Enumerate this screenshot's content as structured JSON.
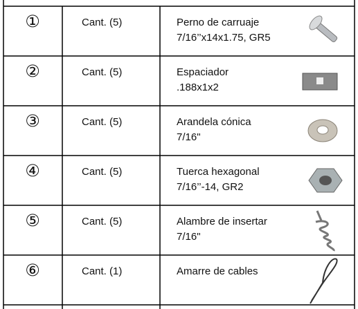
{
  "table": {
    "rows": [
      {
        "number": "①",
        "quantity": "Cant. (5)",
        "description": [
          "Perno de carruaje",
          "7/16’’x14x1.75, GR5"
        ]
      },
      {
        "number": "②",
        "quantity": "Cant. (5)",
        "description": [
          "Espaciador",
          ".188x1x2"
        ]
      },
      {
        "number": "③",
        "quantity": "Cant. (5)",
        "description": [
          "Arandela cónica",
          "7/16\""
        ]
      },
      {
        "number": "④",
        "quantity": "Cant. (5)",
        "description": [
          "Tuerca hexagonal",
          "7/16’’-14, GR2"
        ]
      },
      {
        "number": "⑤",
        "quantity": "Cant. (5)",
        "description": [
          "Alambre de insertar",
          "7/16\""
        ]
      },
      {
        "number": "⑥",
        "quantity": "Cant. (1)",
        "description": [
          "Amarre de cables"
        ]
      }
    ]
  }
}
